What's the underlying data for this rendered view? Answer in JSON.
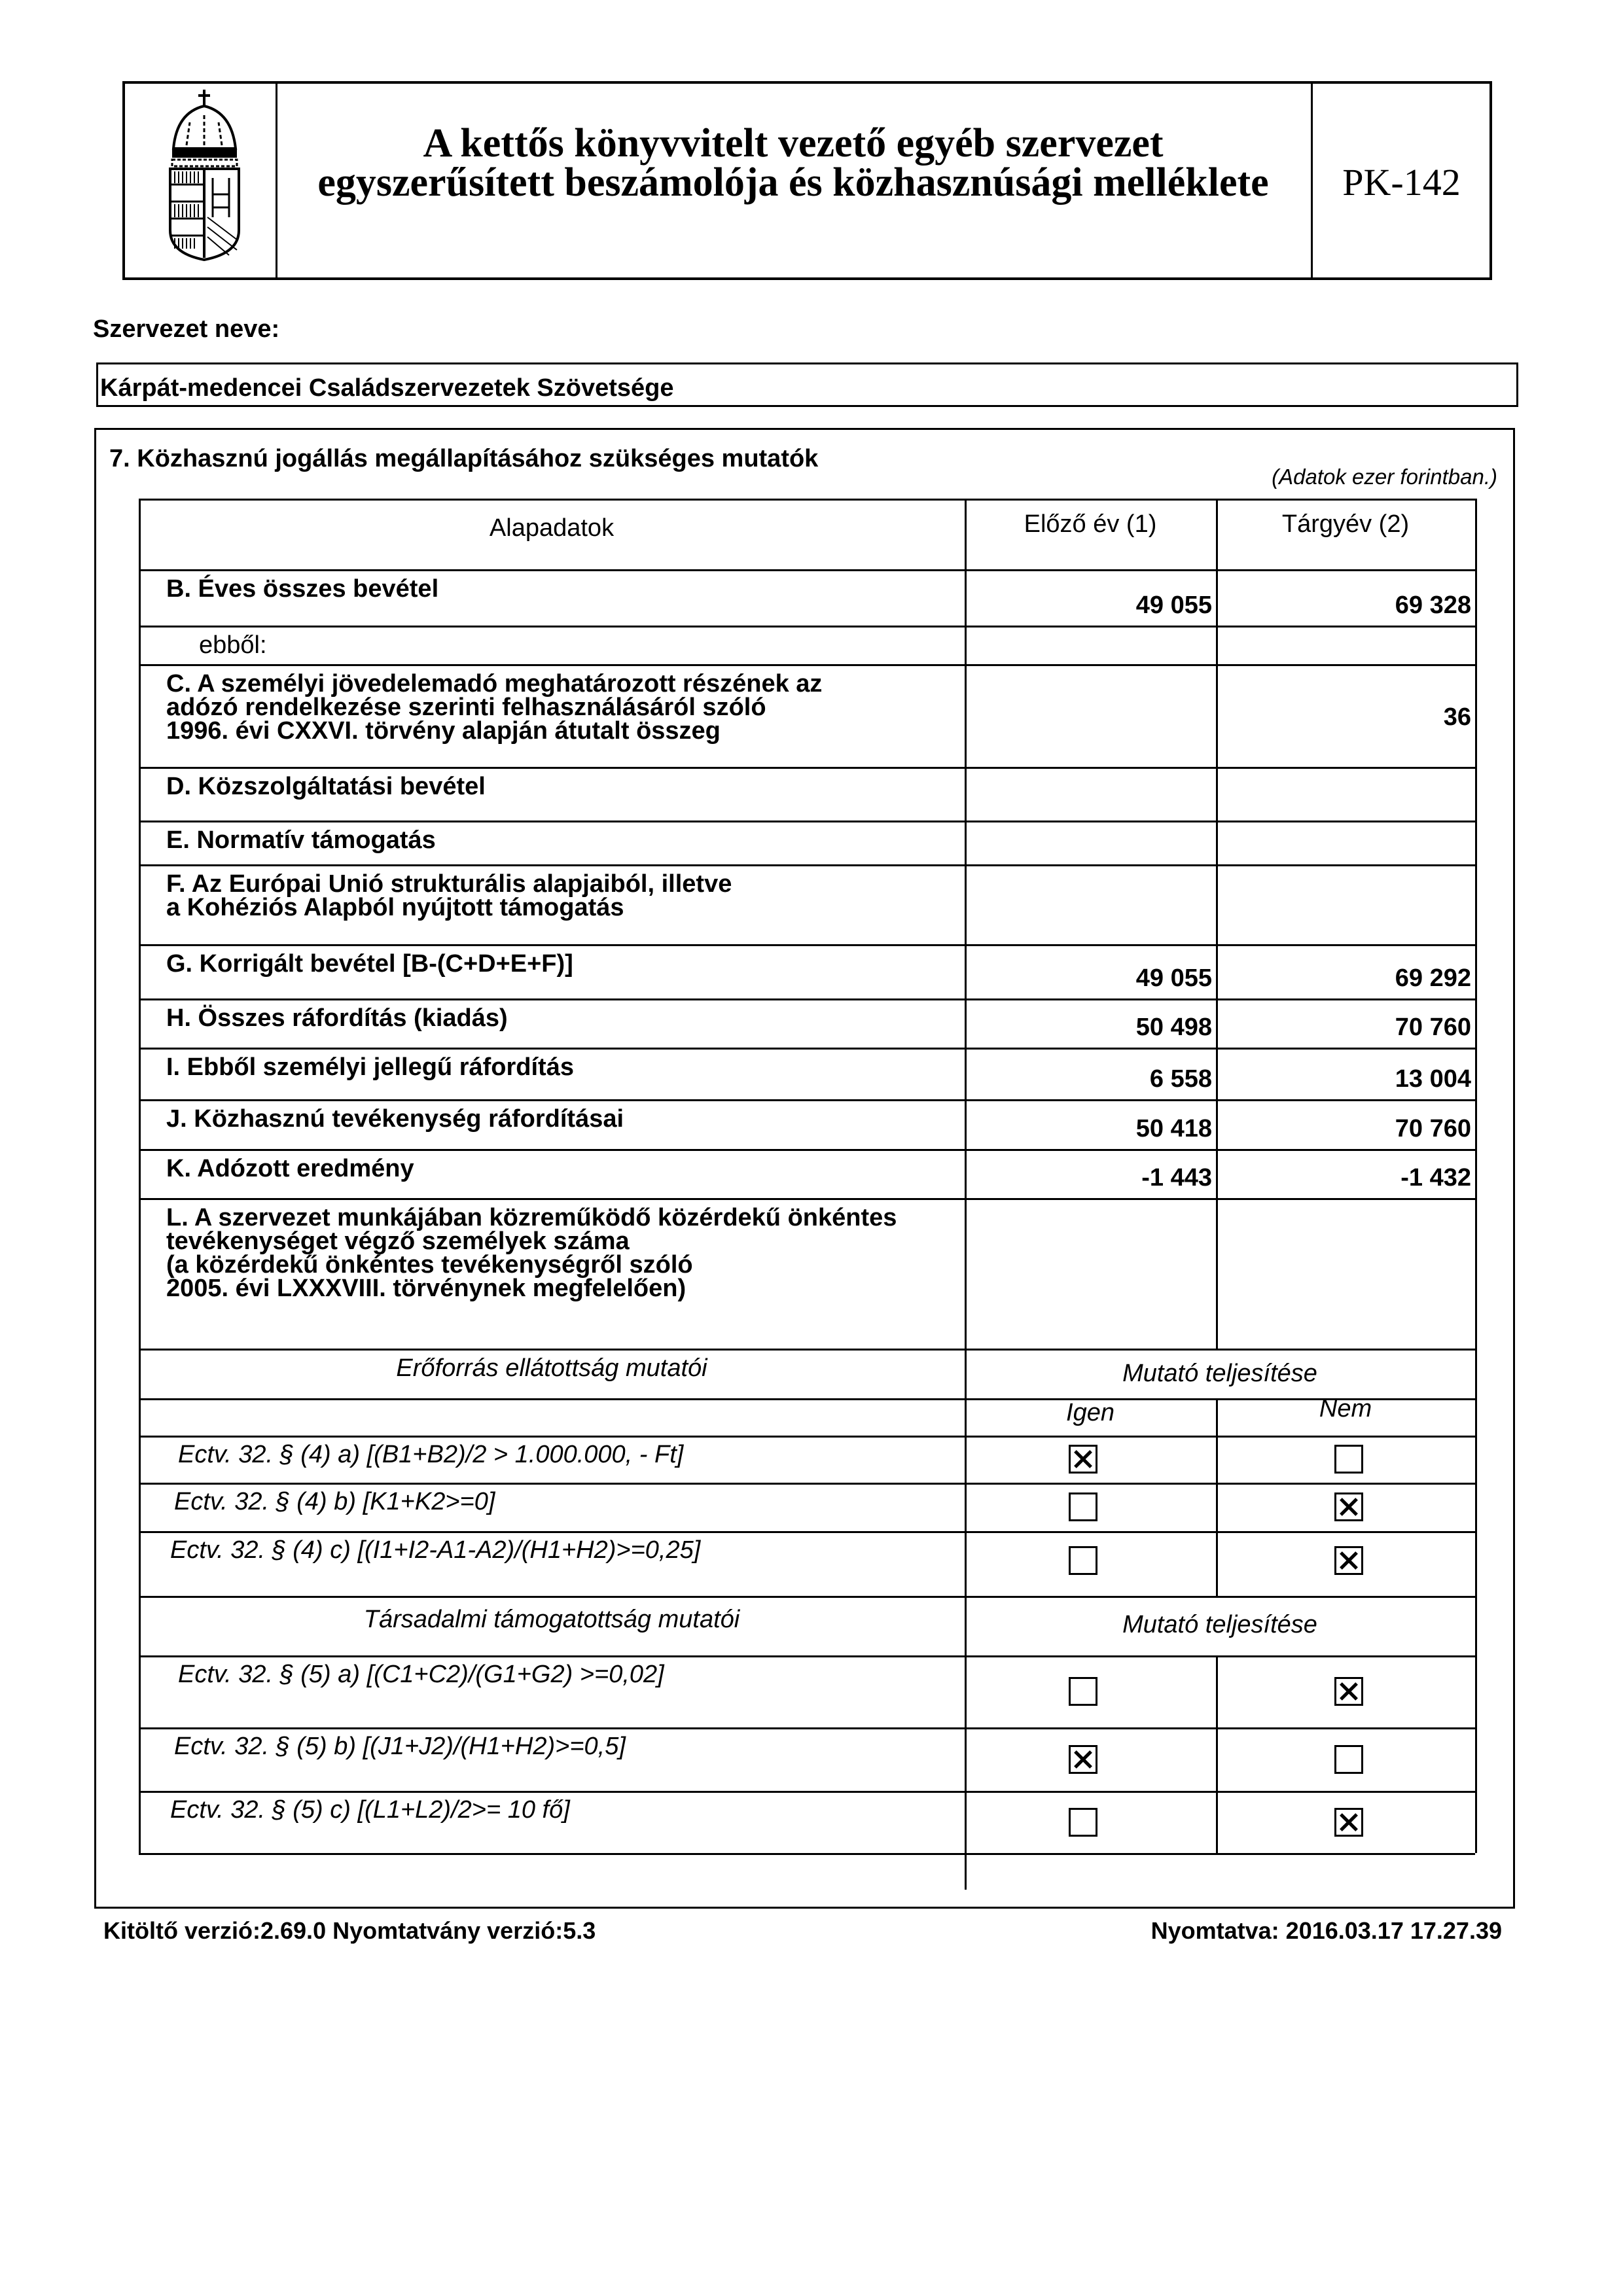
{
  "header": {
    "logo": "Hungarian coat of arms",
    "title_line1": "A kettős könyvvitelt vezető egyéb szervezet",
    "title_line2": "egyszerűsített beszámolója és közhasznúsági melléklete",
    "form_code": "PK-142"
  },
  "organization": {
    "label": "Szervezet neve:",
    "name": "Kárpát-medencei Családszervezetek Szövetsége"
  },
  "section": {
    "title": "7. Közhasznú jogállás megállapításához szükséges mutatók",
    "unit_note": "(Adatok ezer forintban.)",
    "columns": [
      "Alapadatok",
      "Előző év (1)",
      "Tárgyév (2)"
    ],
    "rows": [
      {
        "label": "B. Éves összes bevétel",
        "prev": "49 055",
        "curr": "69 328"
      },
      {
        "label": "ebből:",
        "prev": "",
        "curr": ""
      },
      {
        "label": "C. A személyi jövedelemadó meghatározott részének az\nadózó rendelkezése szerinti felhasználásáról szóló\n1996. évi CXXVI. törvény alapján átutalt összeg",
        "prev": "",
        "curr": "36"
      },
      {
        "label": "D. Közszolgáltatási bevétel",
        "prev": "",
        "curr": ""
      },
      {
        "label": "E. Normatív támogatás",
        "prev": "",
        "curr": ""
      },
      {
        "label": "F. Az Európai Unió strukturális alapjaiból, illetve\na Kohéziós Alapból nyújtott támogatás",
        "prev": "",
        "curr": ""
      },
      {
        "label": "G. Korrigált bevétel [B-(C+D+E+F)]",
        "prev": "49 055",
        "curr": "69 292"
      },
      {
        "label": "H. Összes ráfordítás (kiadás)",
        "prev": "50 498",
        "curr": "70 760"
      },
      {
        "label": "I. Ebből személyi jellegű ráfordítás",
        "prev": "6 558",
        "curr": "13 004"
      },
      {
        "label": "J. Közhasznú tevékenység ráfordításai",
        "prev": "50 418",
        "curr": "70 760"
      },
      {
        "label": "K. Adózott eredmény",
        "prev": "-1 443",
        "curr": "-1 432"
      },
      {
        "label": "L. A szervezet munkájában közreműködő közérdekű önkéntes\ntevékenységet végző személyek száma\n(a közérdekű önkéntes tevékenységről szóló\n2005. évi LXXXVIII. törvénynek megfelelően)",
        "prev": "",
        "curr": ""
      }
    ],
    "resource": {
      "title": "Erőforrás ellátottság mutatói",
      "fulfilment": "Mutató teljesítése",
      "yes": "Igen",
      "no": "Nem",
      "items": [
        {
          "label": "Ectv. 32. § (4) a) [(B1+B2)/2 > 1.000.000, - Ft]",
          "igen": true,
          "nem": false
        },
        {
          "label": "Ectv. 32. § (4) b) [K1+K2>=0]",
          "igen": false,
          "nem": true
        },
        {
          "label": "Ectv. 32. § (4) c) [(I1+I2-A1-A2)/(H1+H2)>=0,25]",
          "igen": false,
          "nem": true
        }
      ]
    },
    "social": {
      "title": "Társadalmi támogatottság mutatói",
      "fulfilment": "Mutató teljesítése",
      "items": [
        {
          "label": "Ectv. 32. § (5) a) [(C1+C2)/(G1+G2) >=0,02]",
          "igen": false,
          "nem": true
        },
        {
          "label": "Ectv. 32. § (5) b) [(J1+J2)/(H1+H2)>=0,5]",
          "igen": true,
          "nem": false
        },
        {
          "label": "Ectv. 32. § (5) c) [(L1+L2)/2>= 10 fő]",
          "igen": false,
          "nem": true
        }
      ]
    }
  },
  "footer": {
    "version": "Kitöltő verzió:2.69.0 Nyomtatvány verzió:5.3",
    "printed": "Nyomtatva: 2016.03.17 17.27.39"
  }
}
